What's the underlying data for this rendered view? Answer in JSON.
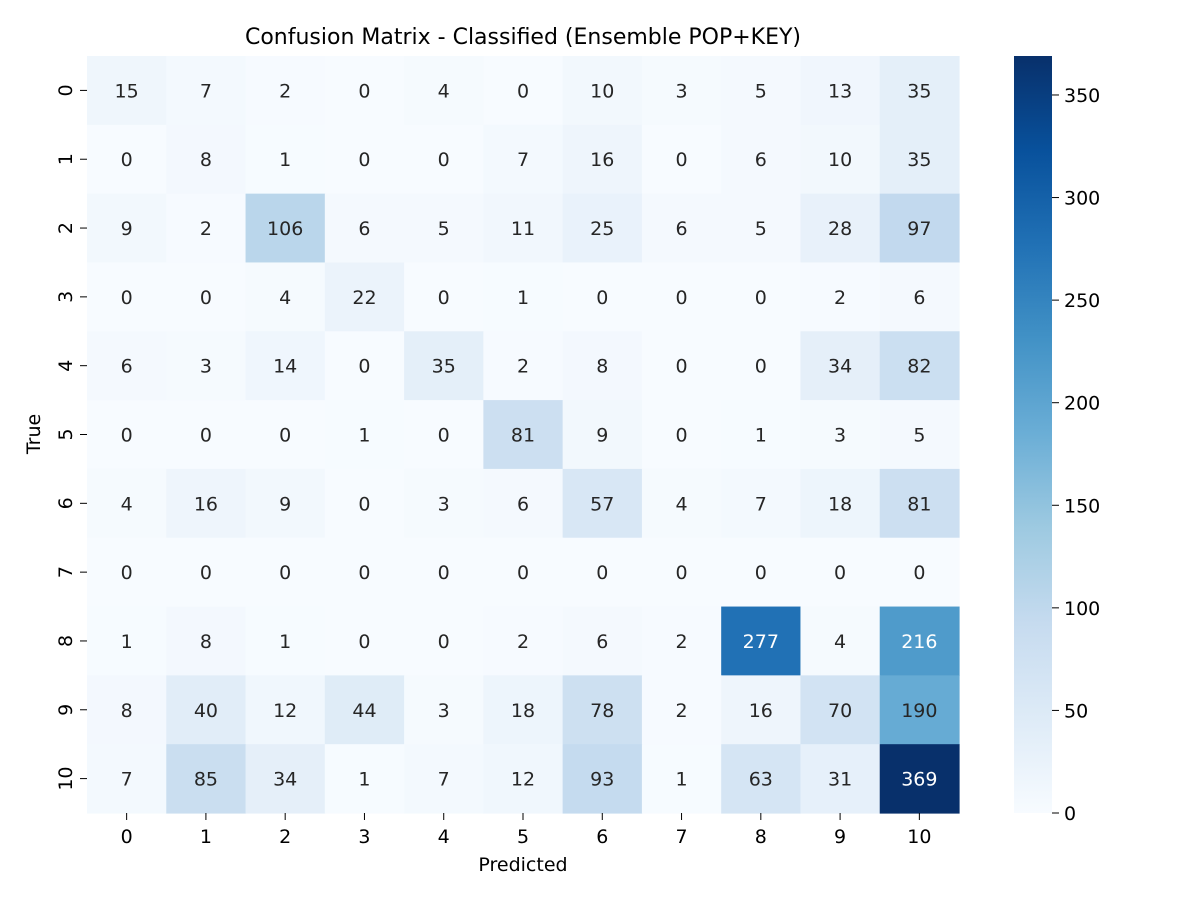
{
  "chart_data": {
    "type": "heatmap",
    "title": "Confusion Matrix - Classified (Ensemble POP+KEY)",
    "xlabel": "Predicted",
    "ylabel": "True",
    "x_categories": [
      "0",
      "1",
      "2",
      "3",
      "4",
      "5",
      "6",
      "7",
      "8",
      "9",
      "10"
    ],
    "y_categories": [
      "0",
      "1",
      "2",
      "3",
      "4",
      "5",
      "6",
      "7",
      "8",
      "9",
      "10"
    ],
    "values": [
      [
        15,
        7,
        2,
        0,
        4,
        0,
        10,
        3,
        5,
        13,
        35
      ],
      [
        0,
        8,
        1,
        0,
        0,
        7,
        16,
        0,
        6,
        10,
        35
      ],
      [
        9,
        2,
        106,
        6,
        5,
        11,
        25,
        6,
        5,
        28,
        97
      ],
      [
        0,
        0,
        4,
        22,
        0,
        1,
        0,
        0,
        0,
        2,
        6
      ],
      [
        6,
        3,
        14,
        0,
        35,
        2,
        8,
        0,
        0,
        34,
        82
      ],
      [
        0,
        0,
        0,
        1,
        0,
        81,
        9,
        0,
        1,
        3,
        5
      ],
      [
        4,
        16,
        9,
        0,
        3,
        6,
        57,
        4,
        7,
        18,
        81
      ],
      [
        0,
        0,
        0,
        0,
        0,
        0,
        0,
        0,
        0,
        0,
        0
      ],
      [
        1,
        8,
        1,
        0,
        0,
        2,
        6,
        2,
        277,
        4,
        216
      ],
      [
        8,
        40,
        12,
        44,
        3,
        18,
        78,
        2,
        16,
        70,
        190
      ],
      [
        7,
        85,
        34,
        1,
        7,
        12,
        93,
        1,
        63,
        31,
        369
      ]
    ],
    "colorbar": {
      "min": 0,
      "max": 369,
      "ticks": [
        0,
        50,
        100,
        150,
        200,
        250,
        300,
        350
      ],
      "colormap": "Blues"
    }
  }
}
